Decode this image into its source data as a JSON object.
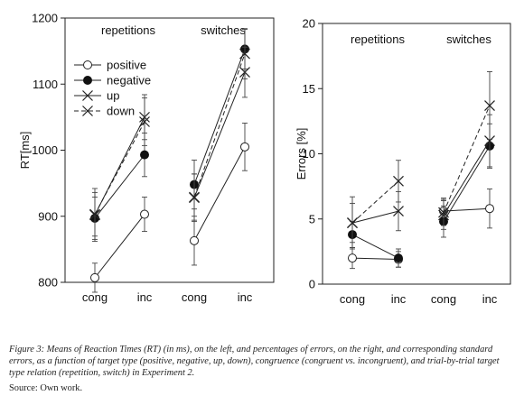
{
  "caption": "Figure 3: Means of Reaction Times (RT) (in ms), on the left, and percentages of errors, on the right, and corresponding standard errors, as a function of target type (positive, negative, up, down), congruence (congruent vs. incongruent), and trial-by-trial target type relation (repetition, switch) in Experiment 2.",
  "source": "Source: Own work.",
  "chart_data": [
    {
      "type": "line",
      "title": "",
      "ylabel": "RT[ms]",
      "xlabel": "",
      "ylim": [
        800,
        1200
      ],
      "yticks": [
        800,
        900,
        1000,
        1100,
        1200
      ],
      "groups": [
        "repetitions",
        "switches"
      ],
      "categories": [
        "cong",
        "inc",
        "cong",
        "inc"
      ],
      "legend": "top-left",
      "series": [
        {
          "name": "positive",
          "marker": "open-circle",
          "dash": false,
          "values": [
            807,
            903,
            863,
            1005
          ],
          "errors": [
            22,
            26,
            37,
            36
          ]
        },
        {
          "name": "negative",
          "marker": "filled-circle",
          "dash": false,
          "values": [
            897,
            993,
            948,
            1153
          ],
          "errors": [
            32,
            33,
            37,
            30
          ]
        },
        {
          "name": "up",
          "marker": "x",
          "dash": false,
          "values": [
            902,
            1050,
            928,
            1118
          ],
          "errors": [
            40,
            34,
            36,
            38
          ]
        },
        {
          "name": "down",
          "marker": "x",
          "dash": true,
          "values": [
            903,
            1043,
            929,
            1146
          ],
          "errors": [
            33,
            36,
            35,
            38
          ]
        }
      ]
    },
    {
      "type": "line",
      "title": "",
      "ylabel": "Errors [%]",
      "xlabel": "",
      "ylim": [
        0,
        20
      ],
      "yticks": [
        0,
        5,
        10,
        15,
        20
      ],
      "groups": [
        "repetitions",
        "switches"
      ],
      "categories": [
        "cong",
        "inc",
        "cong",
        "inc"
      ],
      "legend": "none",
      "series": [
        {
          "name": "positive",
          "marker": "open-circle",
          "dash": false,
          "values": [
            2.0,
            1.9,
            5.6,
            5.8
          ],
          "errors": [
            0.8,
            0.6,
            1.0,
            1.5
          ]
        },
        {
          "name": "negative",
          "marker": "filled-circle",
          "dash": false,
          "values": [
            3.8,
            2.0,
            4.8,
            10.6
          ],
          "errors": [
            1.0,
            0.7,
            1.2,
            1.7
          ]
        },
        {
          "name": "up",
          "marker": "x",
          "dash": false,
          "values": [
            4.7,
            5.6,
            5.3,
            11.0
          ],
          "errors": [
            2.0,
            1.5,
            1.1,
            2.0
          ]
        },
        {
          "name": "down",
          "marker": "x",
          "dash": true,
          "values": [
            4.7,
            7.9,
            5.5,
            13.7
          ],
          "errors": [
            1.5,
            1.6,
            1.0,
            2.6
          ]
        }
      ]
    }
  ]
}
